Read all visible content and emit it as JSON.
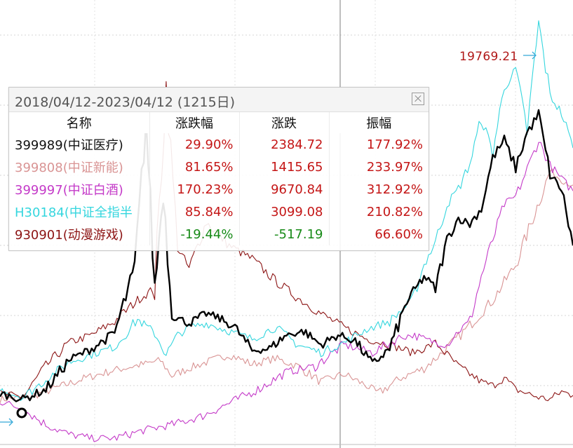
{
  "panel": {
    "title": "2018/04/12-2023/04/12 (1215日)",
    "columns": [
      "名称",
      "涨跌幅",
      "涨跌",
      "振幅"
    ],
    "rows": [
      {
        "name": "399989(中证医疗)",
        "change_pct": "29.90%",
        "change": "2384.72",
        "amplitude": "177.92%",
        "name_color": "#111111",
        "change_dir": "up"
      },
      {
        "name": "399808(中证新能)",
        "change_pct": "81.65%",
        "change": "1415.65",
        "amplitude": "233.97%",
        "name_color": "#d99494",
        "change_dir": "up"
      },
      {
        "name": "399997(中证白酒)",
        "change_pct": "170.23%",
        "change": "9670.84",
        "amplitude": "312.92%",
        "name_color": "#c43ac8",
        "change_dir": "up"
      },
      {
        "name": "H30184(中证全指半",
        "change_pct": "85.84%",
        "change": "3099.08",
        "amplitude": "210.82%",
        "name_color": "#35d6de",
        "change_dir": "up"
      },
      {
        "name": "930901(动漫游戏)",
        "change_pct": "-19.44%",
        "change": "-517.19",
        "amplitude": "66.60%",
        "name_color": "#8c1414",
        "change_dir": "down"
      }
    ]
  },
  "chart_data": {
    "type": "line",
    "peak_label": "19769.21",
    "grid": true,
    "series": [
      {
        "name": "399989(中证医疗)",
        "color": "#000000",
        "x": [
          0,
          0.04,
          0.08,
          0.12,
          0.16,
          0.2,
          0.235,
          0.255,
          0.27,
          0.285,
          0.3,
          0.33,
          0.36,
          0.38,
          0.41,
          0.44,
          0.47,
          0.5,
          0.53,
          0.56,
          0.59,
          0.62,
          0.65,
          0.68,
          0.71,
          0.74,
          0.76,
          0.78,
          0.8,
          0.82,
          0.84,
          0.86,
          0.88,
          0.9,
          0.92,
          0.94,
          0.96,
          0.98,
          1.0
        ],
        "y": [
          0.8,
          0.5,
          1.0,
          2.5,
          3.1,
          3.9,
          7.2,
          14.8,
          6.2,
          11.2,
          4.8,
          4.4,
          4.9,
          4.7,
          4.2,
          3.0,
          3.1,
          3.8,
          4.0,
          3.3,
          3.8,
          3.5,
          2.3,
          3.1,
          5.5,
          6.8,
          6.2,
          8.7,
          9.8,
          9.5,
          10.3,
          12.9,
          13.8,
          12.4,
          14.2,
          15.1,
          12.0,
          11.3,
          8.4
        ]
      },
      {
        "name": "399808(中证新能)",
        "color": "#d99494",
        "x": [
          0,
          0.05,
          0.1,
          0.15,
          0.2,
          0.25,
          0.28,
          0.3,
          0.33,
          0.36,
          0.4,
          0.44,
          0.48,
          0.52,
          0.56,
          0.6,
          0.64,
          0.66,
          0.7,
          0.74,
          0.78,
          0.82,
          0.86,
          0.9,
          0.93,
          0.96,
          0.98,
          1.0
        ],
        "y": [
          0.5,
          0.6,
          1.1,
          1.6,
          2.0,
          2.3,
          2.5,
          1.7,
          2.1,
          2.4,
          2.8,
          2.3,
          2.6,
          2.2,
          1.4,
          1.8,
          1.2,
          0.8,
          1.6,
          2.1,
          3.1,
          4.3,
          5.6,
          7.4,
          9.8,
          12.2,
          11.8,
          11.5
        ]
      },
      {
        "name": "399997(中证白酒)",
        "color": "#c43ac8",
        "x": [
          0,
          0.04,
          0.08,
          0.12,
          0.16,
          0.2,
          0.25,
          0.3,
          0.35,
          0.4,
          0.45,
          0.5,
          0.55,
          0.6,
          0.65,
          0.7,
          0.72,
          0.75,
          0.78,
          0.8,
          0.82,
          0.84,
          0.86,
          0.88,
          0.9,
          0.92,
          0.94,
          0.96,
          0.98,
          1.0
        ],
        "y": [
          0.4,
          0.0,
          -0.8,
          -1.3,
          -1.5,
          -1.5,
          -1.1,
          -0.8,
          -0.4,
          0.3,
          1.0,
          1.9,
          2.2,
          3.3,
          2.9,
          3.7,
          3.8,
          3.5,
          3.3,
          4.0,
          4.5,
          6.8,
          8.7,
          10.5,
          10.9,
          12.3,
          13.8,
          12.5,
          11.8,
          11.2
        ]
      },
      {
        "name": "H30184(中证全指半",
        "color": "#35d6de",
        "x": [
          0,
          0.04,
          0.08,
          0.12,
          0.16,
          0.2,
          0.24,
          0.27,
          0.29,
          0.31,
          0.33,
          0.36,
          0.4,
          0.44,
          0.48,
          0.52,
          0.56,
          0.6,
          0.64,
          0.68,
          0.72,
          0.74,
          0.76,
          0.78,
          0.8,
          0.82,
          0.84,
          0.86,
          0.88,
          0.9,
          0.92,
          0.94,
          0.96,
          0.98,
          1.0
        ],
        "y": [
          1.0,
          0.6,
          1.5,
          2.4,
          2.8,
          3.2,
          4.6,
          3.9,
          2.8,
          3.8,
          4.2,
          4.4,
          4.0,
          3.6,
          4.2,
          3.3,
          2.9,
          3.4,
          4.1,
          4.5,
          5.6,
          7.4,
          8.6,
          10.5,
          11.3,
          12.6,
          14.9,
          13.2,
          16.5,
          17.4,
          14.3,
          19.8,
          16.1,
          15.2,
          13.4
        ]
      },
      {
        "name": "930901(动漫游戏)",
        "color": "#8c1414",
        "x": [
          0,
          0.04,
          0.08,
          0.12,
          0.16,
          0.2,
          0.24,
          0.27,
          0.29,
          0.31,
          0.33,
          0.36,
          0.4,
          0.44,
          0.48,
          0.52,
          0.56,
          0.6,
          0.64,
          0.68,
          0.72,
          0.74,
          0.76,
          0.78,
          0.8,
          0.82,
          0.84,
          0.86,
          0.88,
          0.9,
          0.92,
          0.94,
          0.96,
          0.98,
          1.0
        ],
        "y": [
          0.8,
          0.6,
          2.2,
          3.4,
          3.8,
          4.5,
          5.6,
          6.2,
          16.6,
          8.3,
          7.2,
          9.6,
          8.4,
          7.7,
          6.6,
          5.7,
          4.9,
          4.2,
          3.6,
          3.3,
          2.9,
          3.1,
          3.4,
          2.8,
          2.2,
          1.8,
          1.4,
          1.2,
          1.6,
          1.0,
          0.8,
          0.6,
          0.5,
          0.9,
          0.7
        ]
      }
    ]
  }
}
